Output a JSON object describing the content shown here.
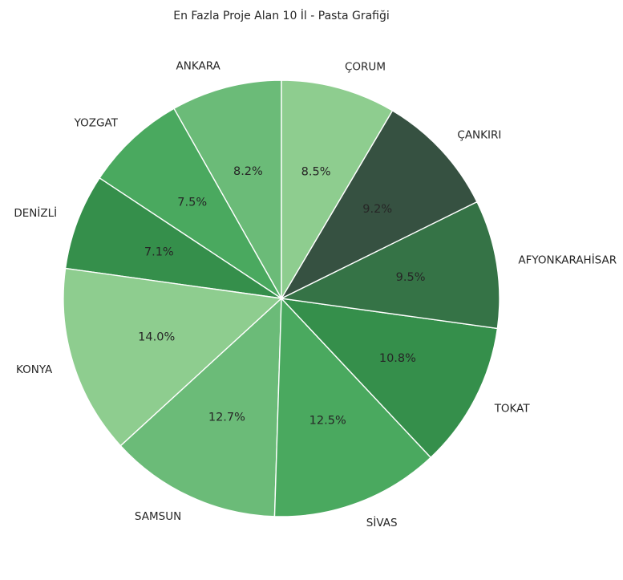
{
  "chart_data": {
    "type": "pie",
    "title": "En Fazla Proje Alan 10 İl - Pasta Grafiği",
    "start_angle_deg": 90,
    "direction": "counterclockwise",
    "slices": [
      {
        "label": "ANKARA",
        "value": 8.2,
        "pct_label": "8.2%",
        "color": "#6bbb78"
      },
      {
        "label": "YOZGAT",
        "value": 7.5,
        "pct_label": "7.5%",
        "color": "#4aa95f"
      },
      {
        "label": "DENİZLİ",
        "value": 7.1,
        "pct_label": "7.1%",
        "color": "#358f4b"
      },
      {
        "label": "KONYA",
        "value": 14.0,
        "pct_label": "14.0%",
        "color": "#8ecd8f"
      },
      {
        "label": "SAMSUN",
        "value": 12.7,
        "pct_label": "12.7%",
        "color": "#6bbb78"
      },
      {
        "label": "SİVAS",
        "value": 12.5,
        "pct_label": "12.5%",
        "color": "#4aa95f"
      },
      {
        "label": "TOKAT",
        "value": 10.8,
        "pct_label": "10.8%",
        "color": "#358f4b"
      },
      {
        "label": "AFYONKARAHİSAR",
        "value": 9.5,
        "pct_label": "9.5%",
        "color": "#357346"
      },
      {
        "label": "ÇANKIRI",
        "value": 9.2,
        "pct_label": "9.2%",
        "color": "#365141"
      },
      {
        "label": "ÇORUM",
        "value": 8.5,
        "pct_label": "8.5%",
        "color": "#8ecd8f"
      }
    ]
  }
}
